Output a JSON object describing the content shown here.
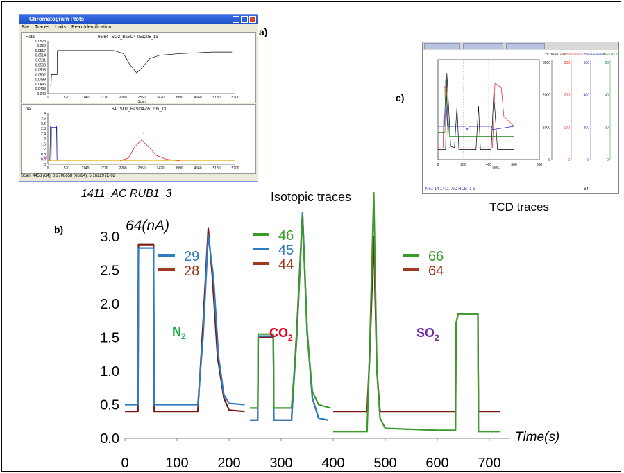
{
  "panels": {
    "a": "a)",
    "b": "b)",
    "c": "c)"
  },
  "window_a": {
    "title": "Chromatogram Plots",
    "menu": [
      "File",
      "Traces",
      "Units",
      "Peak Identification"
    ],
    "top_title": "66/64 : SO2_BaSO4-051205_13",
    "top_ylabel": "Ratio",
    "top_yticks": [
      "0.0523",
      "0.052",
      "0.0517",
      "0.0514",
      "0.0511",
      "0.0508",
      "0.0505",
      "0.0502",
      "0.0499",
      "0.0496",
      "0.0493",
      "0.049"
    ],
    "xticks": [
      "0",
      "570",
      "1140",
      "1710",
      "2280",
      "2850",
      "3420",
      "3990",
      "4560",
      "5130",
      "5700"
    ],
    "xlabel": "Scan",
    "bottom_title": "64 : SO2_BaSO4-051205_13",
    "bottom_ylabel": "nA",
    "bottom_yticks": [
      "4",
      "3.6",
      "3.2",
      "2.8",
      "2.4",
      "2",
      "1.6",
      "1.2",
      "0.8",
      "0.4",
      "0"
    ],
    "peak_label": "1",
    "status": "Scan: 4458  (64): 0.2708658  (66/64): 5.162297E-02"
  },
  "inset_c": {
    "tabs": [
      "",
      "",
      ""
    ],
    "col_heads": [
      "TC detect. unit",
      "SO2 column °C",
      "Flow He ml/min",
      "Flow O2 ml/min"
    ],
    "tc_ticks": [
      "3000",
      "2000",
      "1000",
      "0"
    ],
    "so2_ticks": [
      "300",
      "200",
      "100",
      "0"
    ],
    "he_ticks": [
      "600",
      "400",
      "200",
      "0"
    ],
    "o2_ticks": [
      "60",
      "40",
      "20",
      "0"
    ],
    "xticks": [
      "0",
      "200",
      "400",
      "600",
      "800"
    ],
    "xunit": "[sec.]",
    "footer": "No.: 14 1411_AC RUB_1-3",
    "footer_num": "64",
    "colors": {
      "tc": "#000000",
      "so2": "#e02020",
      "he": "#2020d0",
      "o2": "#208020"
    }
  },
  "labels": {
    "sample": "1411_AC RUB1_3",
    "isotopic": "Isotopic  traces",
    "tcd": "TCD traces"
  },
  "chart_data": {
    "type": "line",
    "title": "",
    "ylabel": "64(nA)",
    "xlabel": "Time(s)",
    "xlim": [
      0,
      740
    ],
    "ylim": [
      0,
      3.3
    ],
    "xticks": [
      0,
      100,
      200,
      300,
      400,
      500,
      600,
      700
    ],
    "yticks": [
      0.0,
      0.5,
      1.0,
      1.5,
      2.0,
      2.5,
      3.0
    ],
    "ytick_labels": [
      "0.0",
      "0.5",
      "1.0",
      "1.5",
      "2.0",
      "2.5",
      "3.0"
    ],
    "gas_labels": [
      {
        "main": "N",
        "sub": "2",
        "color": "#1fa84a"
      },
      {
        "main": "CO",
        "sub": "2",
        "color": "#e2001a"
      },
      {
        "main": "SO",
        "sub": "2",
        "color": "#7030a0"
      }
    ],
    "legend_groups": [
      {
        "entries": [
          {
            "name": "29",
            "color": "#2e7cc4"
          },
          {
            "name": "28",
            "color": "#a0391e"
          }
        ]
      },
      {
        "entries": [
          {
            "name": "46",
            "color": "#3a9a2a"
          },
          {
            "name": "45",
            "color": "#2e7cc4"
          },
          {
            "name": "44",
            "color": "#a0391e"
          }
        ]
      },
      {
        "entries": [
          {
            "name": "66",
            "color": "#3a9a2a"
          },
          {
            "name": "64",
            "color": "#a0391e"
          }
        ]
      }
    ],
    "series": [
      {
        "name": "28",
        "color": "#7b1a12",
        "x": [
          0,
          25,
          26,
          55,
          56,
          140,
          150,
          160,
          168,
          178,
          190,
          200,
          230
        ],
        "y": [
          0.4,
          0.4,
          2.88,
          2.88,
          0.4,
          0.4,
          1.7,
          3.12,
          2.4,
          1.2,
          0.6,
          0.42,
          0.4
        ]
      },
      {
        "name": "29",
        "color": "#2e7cc4",
        "x": [
          0,
          25,
          26,
          55,
          56,
          140,
          150,
          160,
          170,
          180,
          190,
          200,
          230
        ],
        "y": [
          0.5,
          0.5,
          2.83,
          2.83,
          0.5,
          0.5,
          1.5,
          3.02,
          2.4,
          1.2,
          0.65,
          0.52,
          0.5
        ]
      },
      {
        "name": "44",
        "color": "#7b1a12",
        "x": [
          240,
          255,
          256,
          285,
          286,
          320,
          330,
          341,
          350,
          360,
          372,
          390
        ],
        "y": [
          0.27,
          0.27,
          1.5,
          1.5,
          0.27,
          0.27,
          1.6,
          3.35,
          1.6,
          0.6,
          0.3,
          0.27
        ]
      },
      {
        "name": "45",
        "color": "#2e7cc4",
        "x": [
          240,
          255,
          256,
          285,
          286,
          320,
          330,
          341,
          350,
          360,
          372,
          390
        ],
        "y": [
          0.27,
          0.27,
          1.52,
          1.52,
          0.27,
          0.27,
          1.5,
          3.35,
          1.6,
          0.6,
          0.3,
          0.27
        ]
      },
      {
        "name": "46",
        "color": "#3a9a2a",
        "x": [
          240,
          255,
          256,
          285,
          286,
          320,
          330,
          341,
          350,
          360,
          372,
          395
        ],
        "y": [
          0.45,
          0.45,
          1.55,
          1.55,
          0.45,
          0.45,
          1.5,
          3.3,
          1.55,
          0.7,
          0.5,
          0.45
        ]
      },
      {
        "name": "64",
        "color": "#7b1a12",
        "x": [
          400,
          465,
          470,
          478,
          484,
          490,
          500,
          635,
          636,
          640,
          678,
          679,
          720
        ],
        "y": [
          0.4,
          0.4,
          1.2,
          3.0,
          1.0,
          0.4,
          0.4,
          0.4,
          1.7,
          1.85,
          1.85,
          0.4,
          0.4
        ]
      },
      {
        "name": "66",
        "color": "#3a9a2a",
        "x": [
          400,
          465,
          470,
          478,
          484,
          490,
          500,
          600,
          635,
          636,
          640,
          678,
          679,
          720
        ],
        "y": [
          0.1,
          0.1,
          1.3,
          3.65,
          1.0,
          0.3,
          0.15,
          0.12,
          0.12,
          1.7,
          1.85,
          1.85,
          0.1,
          0.1
        ]
      }
    ]
  }
}
